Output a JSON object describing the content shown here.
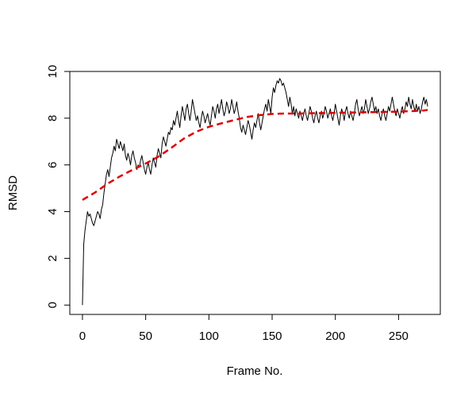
{
  "chart_data": {
    "type": "line",
    "title": "",
    "xlabel": "Frame No.",
    "ylabel": "RMSD",
    "xlim": [
      -10,
      283
    ],
    "ylim": [
      -0.4,
      10.0
    ],
    "xticks": [
      0,
      50,
      100,
      150,
      200,
      250
    ],
    "yticks": [
      0,
      2,
      4,
      6,
      8,
      10
    ],
    "grid": false,
    "legend": "none",
    "series": [
      {
        "style": "solid",
        "color": "#000000",
        "x": [
          0,
          1,
          2,
          3,
          4,
          5,
          6,
          7,
          8,
          9,
          10,
          11,
          12,
          13,
          14,
          15,
          16,
          17,
          18,
          19,
          20,
          21,
          22,
          23,
          24,
          25,
          26,
          27,
          28,
          29,
          30,
          31,
          32,
          33,
          34,
          35,
          36,
          37,
          38,
          39,
          40,
          41,
          42,
          43,
          44,
          45,
          46,
          47,
          48,
          49,
          50,
          51,
          52,
          53,
          54,
          55,
          56,
          57,
          58,
          59,
          60,
          61,
          62,
          63,
          64,
          65,
          66,
          67,
          68,
          69,
          70,
          71,
          72,
          73,
          74,
          75,
          76,
          77,
          78,
          79,
          80,
          81,
          82,
          83,
          84,
          85,
          86,
          87,
          88,
          89,
          90,
          91,
          92,
          93,
          94,
          95,
          96,
          97,
          98,
          99,
          100,
          101,
          102,
          103,
          104,
          105,
          106,
          107,
          108,
          109,
          110,
          111,
          112,
          113,
          114,
          115,
          116,
          117,
          118,
          119,
          120,
          121,
          122,
          123,
          124,
          125,
          126,
          127,
          128,
          129,
          130,
          131,
          132,
          133,
          134,
          135,
          136,
          137,
          138,
          139,
          140,
          141,
          142,
          143,
          144,
          145,
          146,
          147,
          148,
          149,
          150,
          151,
          152,
          153,
          154,
          155,
          156,
          157,
          158,
          159,
          160,
          161,
          162,
          163,
          164,
          165,
          166,
          167,
          168,
          169,
          170,
          171,
          172,
          173,
          174,
          175,
          176,
          177,
          178,
          179,
          180,
          181,
          182,
          183,
          184,
          185,
          186,
          187,
          188,
          189,
          190,
          191,
          192,
          193,
          194,
          195,
          196,
          197,
          198,
          199,
          200,
          201,
          202,
          203,
          204,
          205,
          206,
          207,
          208,
          209,
          210,
          211,
          212,
          213,
          214,
          215,
          216,
          217,
          218,
          219,
          220,
          221,
          222,
          223,
          224,
          225,
          226,
          227,
          228,
          229,
          230,
          231,
          232,
          233,
          234,
          235,
          236,
          237,
          238,
          239,
          240,
          241,
          242,
          243,
          244,
          245,
          246,
          247,
          248,
          249,
          250,
          251,
          252,
          253,
          254,
          255,
          256,
          257,
          258,
          259,
          260,
          261,
          262,
          263,
          264,
          265,
          266,
          267,
          268,
          269,
          270,
          271,
          272,
          273
        ],
        "y": [
          0.0,
          2.6,
          3.2,
          3.6,
          4.0,
          3.8,
          3.9,
          3.7,
          3.5,
          3.4,
          3.6,
          3.8,
          4.0,
          3.9,
          3.7,
          4.1,
          4.3,
          4.8,
          5.2,
          5.6,
          5.8,
          5.5,
          5.9,
          6.3,
          6.5,
          6.8,
          6.6,
          7.1,
          6.9,
          6.7,
          7.0,
          6.8,
          6.6,
          6.9,
          6.4,
          6.2,
          6.5,
          6.3,
          6.0,
          6.4,
          6.6,
          6.3,
          6.1,
          5.8,
          6.0,
          5.9,
          6.2,
          6.4,
          6.1,
          5.8,
          5.6,
          5.9,
          6.1,
          5.8,
          5.6,
          6.0,
          6.3,
          6.1,
          5.9,
          6.4,
          6.7,
          6.5,
          6.3,
          6.9,
          7.2,
          7.0,
          6.8,
          7.1,
          7.4,
          7.3,
          7.6,
          7.5,
          7.9,
          7.7,
          8.0,
          8.3,
          7.9,
          7.6,
          8.1,
          8.5,
          8.2,
          7.9,
          8.4,
          8.6,
          8.2,
          7.9,
          8.3,
          8.8,
          8.5,
          8.2,
          7.9,
          8.1,
          7.8,
          7.6,
          8.0,
          8.3,
          8.1,
          7.8,
          8.0,
          8.2,
          7.9,
          7.7,
          8.1,
          8.5,
          8.3,
          8.0,
          8.4,
          8.6,
          8.2,
          8.5,
          8.8,
          8.4,
          8.1,
          8.3,
          8.7,
          8.5,
          8.2,
          8.4,
          8.8,
          8.5,
          8.2,
          8.4,
          8.7,
          8.3,
          8.0,
          7.6,
          7.4,
          7.7,
          7.5,
          7.3,
          7.6,
          7.9,
          7.7,
          7.4,
          7.1,
          7.5,
          7.8,
          7.6,
          7.9,
          8.2,
          7.8,
          7.5,
          7.8,
          8.1,
          8.4,
          8.6,
          8.3,
          8.8,
          8.5,
          8.2,
          8.9,
          9.3,
          9.1,
          9.4,
          9.6,
          9.5,
          9.7,
          9.6,
          9.4,
          9.5,
          9.3,
          9.1,
          8.8,
          8.5,
          8.9,
          8.6,
          8.2,
          8.5,
          8.1,
          8.4,
          8.2,
          8.0,
          8.3,
          8.1,
          7.9,
          8.2,
          8.4,
          8.1,
          7.9,
          8.2,
          8.5,
          8.3,
          8.0,
          7.8,
          8.1,
          8.3,
          8.0,
          7.8,
          8.1,
          8.3,
          8.0,
          8.2,
          8.5,
          8.3,
          8.0,
          8.2,
          8.4,
          8.1,
          7.9,
          8.2,
          8.6,
          8.3,
          8.0,
          7.7,
          8.1,
          8.4,
          8.2,
          7.9,
          8.3,
          8.5,
          8.2,
          8.0,
          8.3,
          8.1,
          7.9,
          8.2,
          8.6,
          8.8,
          8.4,
          8.1,
          8.3,
          8.5,
          8.2,
          8.4,
          8.8,
          8.5,
          8.2,
          8.4,
          8.7,
          8.9,
          8.6,
          8.3,
          8.5,
          8.2,
          8.4,
          8.1,
          7.9,
          8.2,
          8.4,
          8.1,
          7.9,
          8.2,
          8.5,
          8.3,
          8.6,
          8.9,
          8.6,
          8.3,
          8.1,
          8.4,
          8.2,
          8.0,
          8.3,
          8.5,
          8.2,
          8.4,
          8.7,
          8.5,
          8.9,
          8.6,
          8.4,
          8.8,
          8.5,
          8.3,
          8.6,
          8.3,
          8.5,
          8.2,
          8.4,
          8.7,
          8.9,
          8.6,
          8.8,
          8.5
        ]
      },
      {
        "style": "dashed",
        "color": "#dd0000",
        "x": [
          0,
          10,
          20,
          30,
          40,
          50,
          60,
          70,
          80,
          90,
          100,
          110,
          120,
          130,
          140,
          150,
          160,
          170,
          180,
          190,
          200,
          210,
          220,
          230,
          240,
          250,
          260,
          270,
          273
        ],
        "y": [
          4.5,
          4.82,
          5.2,
          5.52,
          5.8,
          6.06,
          6.35,
          6.72,
          7.12,
          7.42,
          7.63,
          7.78,
          7.92,
          8.05,
          8.13,
          8.18,
          8.2,
          8.2,
          8.21,
          8.22,
          8.23,
          8.24,
          8.25,
          8.26,
          8.27,
          8.28,
          8.3,
          8.33,
          8.35
        ]
      }
    ]
  }
}
